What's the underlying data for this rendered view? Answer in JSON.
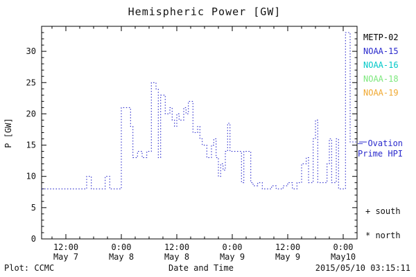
{
  "chart_data": {
    "type": "line",
    "title": "Hemispheric Power [GW]",
    "xlabel": "Date and Time",
    "ylabel": "P [GW]",
    "ylim": [
      0,
      34
    ],
    "xlim_hours": [
      6.75,
      75
    ],
    "x_epoch": "hours since 2015-05-07 00:00",
    "grid": false,
    "legend_position": "right",
    "yticks": [
      0,
      5,
      10,
      15,
      20,
      25,
      30
    ],
    "y_minor_step": 1,
    "x_minor_step": 3,
    "xticks": [
      {
        "hour": 12,
        "time": "12:00",
        "date": "May 7"
      },
      {
        "hour": 24,
        "time": "0:00",
        "date": "May 8"
      },
      {
        "hour": 36,
        "time": "12:00",
        "date": "May 8"
      },
      {
        "hour": 48,
        "time": "0:00",
        "date": "May 9"
      },
      {
        "hour": 60,
        "time": "12:00",
        "date": "May 9"
      },
      {
        "hour": 72,
        "time": "0:00",
        "date": "May10"
      }
    ],
    "series": [
      {
        "name": "Ovation Prime HPI",
        "color": "#2929cc",
        "style": "dotted-step",
        "points": [
          [
            6.75,
            8
          ],
          [
            16.5,
            10
          ],
          [
            17.5,
            8
          ],
          [
            20.5,
            10
          ],
          [
            21.5,
            8
          ],
          [
            24,
            21
          ],
          [
            26,
            18
          ],
          [
            26.5,
            13
          ],
          [
            27.5,
            14
          ],
          [
            28.5,
            13
          ],
          [
            29.5,
            14
          ],
          [
            30.5,
            25
          ],
          [
            31.5,
            24
          ],
          [
            32,
            13
          ],
          [
            32.5,
            23
          ],
          [
            33.5,
            20
          ],
          [
            34.5,
            21
          ],
          [
            35,
            19
          ],
          [
            35.5,
            18
          ],
          [
            36,
            20
          ],
          [
            36.5,
            19
          ],
          [
            37.5,
            21
          ],
          [
            38,
            20
          ],
          [
            38.5,
            22
          ],
          [
            39.5,
            17
          ],
          [
            40.5,
            18
          ],
          [
            41,
            16
          ],
          [
            41.5,
            15
          ],
          [
            42.5,
            13
          ],
          [
            43.5,
            15
          ],
          [
            44,
            16
          ],
          [
            44.5,
            13
          ],
          [
            45,
            10
          ],
          [
            45.5,
            12
          ],
          [
            46,
            11
          ],
          [
            46.5,
            14
          ],
          [
            47,
            18.5
          ],
          [
            47.5,
            14
          ],
          [
            50,
            9
          ],
          [
            50.5,
            14
          ],
          [
            52,
            9
          ],
          [
            52.5,
            8.5
          ],
          [
            53.5,
            9
          ],
          [
            54.5,
            8
          ],
          [
            56.5,
            8.5
          ],
          [
            57.5,
            8
          ],
          [
            59,
            8.5
          ],
          [
            60,
            9
          ],
          [
            61,
            8
          ],
          [
            62,
            9
          ],
          [
            63,
            12
          ],
          [
            64,
            13
          ],
          [
            64.5,
            9
          ],
          [
            65.5,
            16
          ],
          [
            66,
            19
          ],
          [
            66.5,
            9
          ],
          [
            68,
            9
          ],
          [
            68.5,
            12
          ],
          [
            69,
            16
          ],
          [
            69.5,
            9
          ],
          [
            70.5,
            16
          ],
          [
            71,
            8
          ],
          [
            72.5,
            33
          ],
          [
            73.5,
            15.5
          ]
        ]
      }
    ],
    "hpi_marker_value": 15.5
  },
  "legend": {
    "items": [
      {
        "label": "METP-02",
        "color": "#000000"
      },
      {
        "label": "NOAA-15",
        "color": "#2929cc"
      },
      {
        "label": "NOAA-16",
        "color": "#00c8c8"
      },
      {
        "label": "NOAA-18",
        "color": "#7ce87c"
      },
      {
        "label": "NOAA-19",
        "color": "#f0a830"
      }
    ]
  },
  "annotations": {
    "ovation_line1": "— Ovation",
    "ovation_line2": "Prime HPI",
    "south": "+ south",
    "north": "* north"
  },
  "footer": {
    "left": "Plot: CCMC",
    "timestamp": "2015/05/10 03:15:11"
  }
}
